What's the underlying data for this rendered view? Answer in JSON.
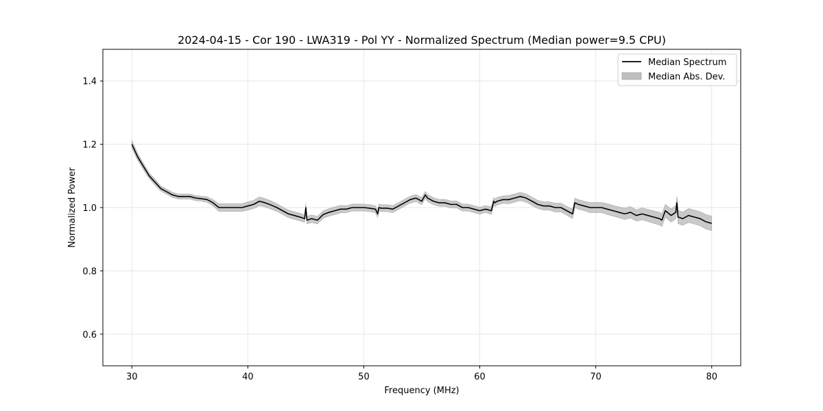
{
  "chart_data": {
    "type": "line",
    "title": "2024-04-15 - Cor 190 - LWA319 - Pol YY - Normalized Spectrum (Median power=9.5 CPU)",
    "xlabel": "Frequency (MHz)",
    "ylabel": "Normalized Power",
    "xlim": [
      27.5,
      82.5
    ],
    "ylim": [
      0.5,
      1.5
    ],
    "xticks": [
      30,
      40,
      50,
      60,
      70,
      80
    ],
    "yticks": [
      0.6,
      0.8,
      1.0,
      1.2,
      1.4
    ],
    "xtick_labels": [
      "30",
      "40",
      "50",
      "60",
      "70",
      "80"
    ],
    "ytick_labels": [
      "0.6",
      "0.8",
      "1.0",
      "1.2",
      "1.4"
    ],
    "grid": true,
    "legend_position": "top-right",
    "legend": [
      {
        "label": "Median Spectrum",
        "kind": "line",
        "color": "#000000"
      },
      {
        "label": "Median Abs. Dev.",
        "kind": "band",
        "color": "#bfbfbf"
      }
    ],
    "series": [
      {
        "name": "Median Spectrum",
        "color": "#000000",
        "x": [
          30.0,
          30.5,
          31.0,
          31.5,
          32.0,
          32.5,
          33.0,
          33.5,
          34.0,
          34.5,
          35.0,
          35.5,
          36.0,
          36.5,
          37.0,
          37.5,
          38.0,
          38.5,
          39.0,
          39.5,
          40.0,
          40.5,
          41.0,
          41.5,
          42.0,
          42.5,
          43.0,
          43.5,
          44.0,
          44.5,
          44.9,
          45.0,
          45.1,
          45.5,
          46.0,
          46.5,
          47.0,
          47.5,
          48.0,
          48.5,
          49.0,
          49.5,
          50.0,
          50.5,
          51.0,
          51.2,
          51.3,
          51.5,
          52.0,
          52.5,
          53.0,
          53.5,
          54.0,
          54.5,
          55.0,
          55.3,
          55.5,
          56.0,
          56.5,
          57.0,
          57.5,
          58.0,
          58.5,
          59.0,
          59.5,
          60.0,
          60.5,
          61.0,
          61.2,
          61.3,
          61.5,
          62.0,
          62.5,
          63.0,
          63.5,
          64.0,
          64.5,
          65.0,
          65.5,
          66.0,
          66.5,
          67.0,
          67.5,
          68.0,
          68.2,
          68.5,
          69.0,
          69.5,
          70.0,
          70.5,
          71.0,
          71.5,
          72.0,
          72.5,
          73.0,
          73.5,
          74.0,
          74.5,
          75.0,
          75.5,
          75.7,
          76.0,
          76.5,
          76.9,
          77.0,
          77.1,
          77.5,
          78.0,
          78.5,
          79.0,
          79.5,
          80.0
        ],
        "y": [
          1.2,
          1.16,
          1.13,
          1.1,
          1.08,
          1.06,
          1.05,
          1.04,
          1.035,
          1.035,
          1.035,
          1.03,
          1.028,
          1.025,
          1.015,
          1.0,
          1.0,
          1.0,
          1.0,
          1.0,
          1.005,
          1.01,
          1.02,
          1.015,
          1.008,
          1.0,
          0.99,
          0.98,
          0.975,
          0.97,
          0.965,
          1.0,
          0.96,
          0.965,
          0.96,
          0.978,
          0.985,
          0.99,
          0.995,
          0.995,
          1.0,
          1.0,
          1.0,
          0.998,
          0.995,
          0.98,
          1.0,
          0.998,
          0.998,
          0.995,
          1.005,
          1.015,
          1.025,
          1.03,
          1.02,
          1.04,
          1.03,
          1.02,
          1.015,
          1.015,
          1.01,
          1.01,
          1.0,
          1.0,
          0.995,
          0.99,
          0.995,
          0.99,
          1.02,
          1.015,
          1.02,
          1.025,
          1.025,
          1.03,
          1.035,
          1.03,
          1.02,
          1.01,
          1.005,
          1.005,
          1.0,
          1.0,
          0.99,
          0.98,
          1.015,
          1.01,
          1.005,
          1.0,
          1.0,
          1.0,
          0.995,
          0.99,
          0.985,
          0.98,
          0.985,
          0.975,
          0.98,
          0.975,
          0.97,
          0.965,
          0.96,
          0.99,
          0.975,
          0.985,
          1.015,
          0.97,
          0.965,
          0.975,
          0.97,
          0.965,
          0.955,
          0.95
        ]
      }
    ],
    "band": {
      "name": "Median Abs. Dev.",
      "half_width": [
        0.012,
        0.011,
        0.01,
        0.009,
        0.009,
        0.008,
        0.008,
        0.008,
        0.008,
        0.008,
        0.008,
        0.008,
        0.008,
        0.009,
        0.01,
        0.012,
        0.012,
        0.012,
        0.012,
        0.012,
        0.013,
        0.013,
        0.014,
        0.013,
        0.013,
        0.012,
        0.012,
        0.012,
        0.012,
        0.012,
        0.012,
        0.012,
        0.012,
        0.012,
        0.012,
        0.012,
        0.012,
        0.012,
        0.012,
        0.011,
        0.011,
        0.011,
        0.011,
        0.011,
        0.011,
        0.011,
        0.011,
        0.011,
        0.011,
        0.011,
        0.011,
        0.011,
        0.011,
        0.011,
        0.011,
        0.011,
        0.011,
        0.011,
        0.011,
        0.011,
        0.011,
        0.011,
        0.011,
        0.011,
        0.011,
        0.011,
        0.011,
        0.012,
        0.012,
        0.012,
        0.012,
        0.012,
        0.013,
        0.013,
        0.013,
        0.013,
        0.013,
        0.013,
        0.013,
        0.013,
        0.014,
        0.014,
        0.014,
        0.015,
        0.015,
        0.015,
        0.015,
        0.016,
        0.016,
        0.016,
        0.017,
        0.017,
        0.017,
        0.018,
        0.018,
        0.018,
        0.019,
        0.019,
        0.02,
        0.02,
        0.02,
        0.02,
        0.021,
        0.021,
        0.021,
        0.021,
        0.021,
        0.022,
        0.022,
        0.022,
        0.023,
        0.023
      ]
    }
  }
}
